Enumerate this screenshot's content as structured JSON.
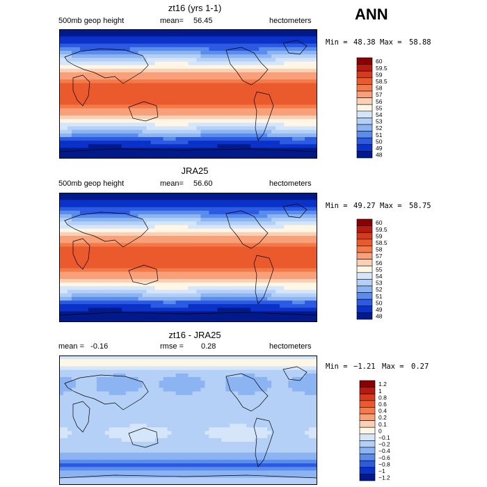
{
  "season": "ANN",
  "chart_data": [
    {
      "type": "heatmap",
      "title": "zt16 (yrs 1-1)",
      "left_label": "500mb geop height",
      "mean_label": "mean=",
      "mean_value": "56.45",
      "units": "hectometers",
      "min_label": "Min =",
      "min_value": "48.38",
      "max_label": "Max =",
      "max_value": "58.88",
      "field": "abs",
      "mean": 56.45,
      "min": 48.38,
      "max": 58.88,
      "levels": [
        "60",
        "59.5",
        "59",
        "58.5",
        "58",
        "57",
        "56",
        "55",
        "54",
        "53",
        "52",
        "51",
        "50",
        "49",
        "48"
      ],
      "colors": [
        "#8b0000",
        "#b81a10",
        "#d83a1e",
        "#ea5a2c",
        "#f47a4a",
        "#f8a07a",
        "#fcd0b4",
        "#fff6e6",
        "#d6e6fa",
        "#b4d0f6",
        "#8cb4f2",
        "#5a8cec",
        "#2c5ae2",
        "#0a32c8",
        "#001a8c"
      ]
    },
    {
      "type": "heatmap",
      "title": "JRA25",
      "left_label": "500mb geop height",
      "mean_label": "mean=",
      "mean_value": "56.60",
      "units": "hectometers",
      "min_label": "Min =",
      "min_value": "49.27",
      "max_label": "Max =",
      "max_value": "58.75",
      "field": "abs",
      "mean": 56.6,
      "min": 49.27,
      "max": 58.75,
      "levels": [
        "60",
        "59.5",
        "59",
        "58.5",
        "58",
        "57",
        "56",
        "55",
        "54",
        "53",
        "52",
        "51",
        "50",
        "49",
        "48"
      ],
      "colors": [
        "#8b0000",
        "#b81a10",
        "#d83a1e",
        "#ea5a2c",
        "#f47a4a",
        "#f8a07a",
        "#fcd0b4",
        "#fff6e6",
        "#d6e6fa",
        "#b4d0f6",
        "#8cb4f2",
        "#5a8cec",
        "#2c5ae2",
        "#0a32c8",
        "#001a8c"
      ]
    },
    {
      "type": "heatmap",
      "title": "zt16 - JRA25",
      "left_label": "mean =   -0.16",
      "mean_label": "rmse =",
      "mean_value": "0.28",
      "units": "hectometers",
      "min_label": "Min =",
      "min_value": "−1.21",
      "max_label": "Max =",
      "max_value": "0.27",
      "field": "diff",
      "mean": -0.16,
      "rmse": 0.28,
      "min": -1.21,
      "max": 0.27,
      "levels": [
        "1.2",
        "1",
        "0.8",
        "0.6",
        "0.4",
        "0.2",
        "0.1",
        "0",
        "−0.1",
        "−0.2",
        "−0.4",
        "−0.6",
        "−0.8",
        "−1",
        "−1.2"
      ],
      "colors": [
        "#8b0000",
        "#b81a10",
        "#d83a1e",
        "#ea5a2c",
        "#f47a4a",
        "#f8a07a",
        "#fcd0b4",
        "#fff6e6",
        "#d6e6fa",
        "#b4d0f6",
        "#8cb4f2",
        "#5a8cec",
        "#2c5ae2",
        "#0a32c8",
        "#001a8c"
      ]
    }
  ]
}
